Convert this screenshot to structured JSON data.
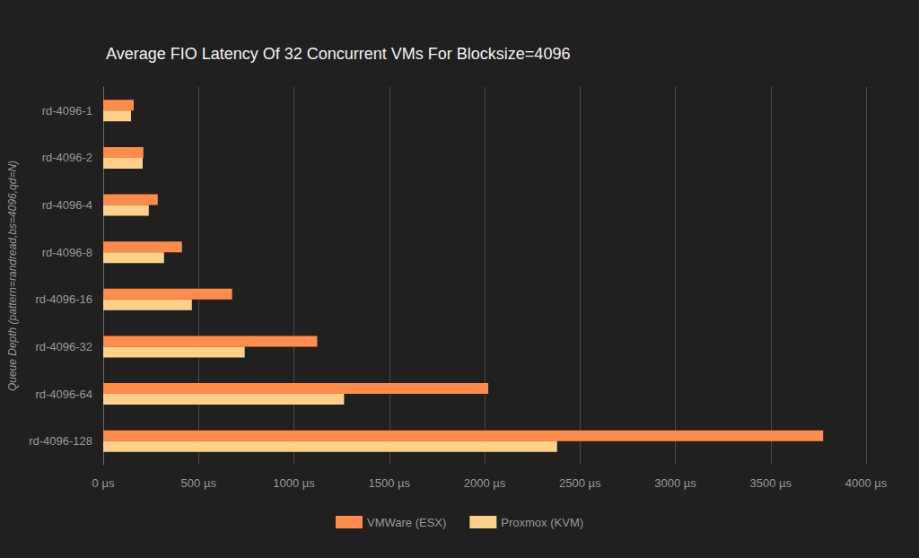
{
  "chart_data": {
    "type": "bar",
    "orientation": "horizontal",
    "title": "Average FIO Latency Of 32 Concurrent VMs For Blocksize=4096",
    "y_label": "Queue Depth (pattern=randread,bs=4096,qd=N)",
    "categories": [
      "rd-4096-1",
      "rd-4096-2",
      "rd-4096-4",
      "rd-4096-8",
      "rd-4096-16",
      "rd-4096-32",
      "rd-4096-64",
      "rd-4096-128"
    ],
    "series": [
      {
        "name": "VMWare (ESX)",
        "color": "#ff8c4a",
        "values": [
          160,
          211,
          286,
          413,
          676,
          1122,
          2019,
          3775
        ]
      },
      {
        "name": "Proxmox (KVM)",
        "color": "#ffd08a",
        "values": [
          146,
          207,
          239,
          319,
          465,
          742,
          1263,
          2380
        ]
      }
    ],
    "xlim": [
      0,
      4000
    ],
    "xticks": [
      {
        "value": 0,
        "label": "0 µs"
      },
      {
        "value": 500,
        "label": "500 µs"
      },
      {
        "value": 1000,
        "label": "1000 µs"
      },
      {
        "value": 1500,
        "label": "1500 µs"
      },
      {
        "value": 2000,
        "label": "2000 µs"
      },
      {
        "value": 2500,
        "label": "2500 µs"
      },
      {
        "value": 3000,
        "label": "3000 µs"
      },
      {
        "value": 3500,
        "label": "3500 µs"
      },
      {
        "value": 4000,
        "label": "4000 µs"
      }
    ],
    "grid": true,
    "legend": "bottom"
  }
}
